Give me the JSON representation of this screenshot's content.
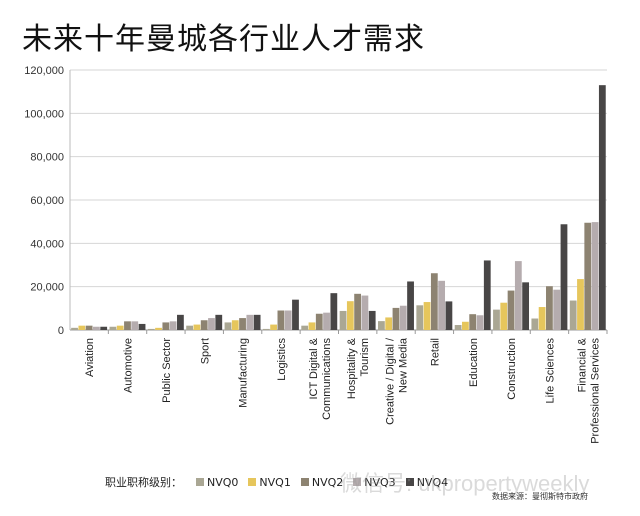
{
  "title": "未来十年曼城各行业人才需求",
  "chart_data": {
    "type": "bar",
    "title": "未来十年曼城各行业人才需求",
    "ylim": [
      0,
      120000
    ],
    "yticks": [
      "0",
      "20,000",
      "40,000",
      "60,000",
      "80,000",
      "100,000",
      "120,000"
    ],
    "grid": true,
    "legend_placement": "bottom",
    "legend_title": "职业职称级别：",
    "categories": [
      [
        "Aviation"
      ],
      [
        "Automotive"
      ],
      [
        "Public Sector"
      ],
      [
        "Sport"
      ],
      [
        "Manufacturing"
      ],
      [
        "Logistics"
      ],
      [
        "ICT Digital &",
        "Communications"
      ],
      [
        "Hospitality &",
        "Tourism"
      ],
      [
        "Creative / Digital /",
        "New Media"
      ],
      [
        "Retail"
      ],
      [
        "Education"
      ],
      [
        "Construction"
      ],
      [
        "Life Sciences"
      ],
      [
        "Financial &",
        "Professional Services"
      ]
    ],
    "series": [
      {
        "name": "NVQ0",
        "color": "#aaa794",
        "values": [
          1000,
          1500,
          500,
          2000,
          3500,
          500,
          2000,
          8800,
          4100,
          11400,
          2300,
          9400,
          5300,
          13600
        ]
      },
      {
        "name": "NVQ1",
        "color": "#e6c65c",
        "values": [
          2000,
          2000,
          1000,
          2500,
          4500,
          2500,
          3500,
          13300,
          5800,
          12900,
          3800,
          12600,
          10600,
          23500
        ]
      },
      {
        "name": "NVQ2",
        "color": "#8d8371",
        "values": [
          2000,
          4000,
          3500,
          4500,
          5500,
          9000,
          7500,
          16700,
          10200,
          26200,
          7300,
          18200,
          20200,
          49500
        ]
      },
      {
        "name": "NVQ3",
        "color": "#b5acae",
        "values": [
          1500,
          4000,
          4000,
          5500,
          7000,
          9000,
          8000,
          15900,
          11200,
          22700,
          6800,
          31800,
          18600,
          49800
        ]
      },
      {
        "name": "NVQ4",
        "color": "#484646",
        "values": [
          1500,
          2800,
          7000,
          7000,
          7000,
          14000,
          17000,
          8800,
          22400,
          13200,
          32100,
          22000,
          48800,
          113000
        ]
      }
    ],
    "source": "数据来源：曼彻斯特市政府"
  },
  "watermark": "微信号: ukpropertyweekly"
}
